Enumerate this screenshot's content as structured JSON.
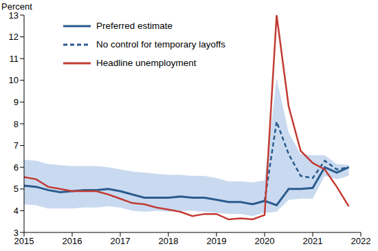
{
  "chart_data": {
    "type": "line",
    "y_label": "Percent",
    "x": [
      2015,
      2015.25,
      2015.5,
      2015.75,
      2016,
      2016.25,
      2016.5,
      2016.75,
      2017,
      2017.25,
      2017.5,
      2017.75,
      2018,
      2018.25,
      2018.5,
      2018.75,
      2019,
      2019.25,
      2019.5,
      2019.75,
      2020,
      2020.25,
      2020.5,
      2020.75,
      2021,
      2021.25,
      2021.5,
      2021.75
    ],
    "series": [
      {
        "name": "Preferred estimate",
        "color": "#2a5b8d",
        "line_style": "solid",
        "values": [
          5.15,
          5.1,
          4.95,
          4.85,
          4.9,
          4.95,
          4.95,
          5.0,
          4.9,
          4.75,
          4.6,
          4.6,
          4.6,
          4.65,
          4.6,
          4.6,
          4.5,
          4.4,
          4.4,
          4.3,
          4.45,
          4.25,
          5.0,
          5.0,
          5.05,
          6.0,
          5.75,
          6.0
        ]
      },
      {
        "name": "No control for temporary layoffs",
        "color": "#2a5b8d",
        "line_style": "dashed",
        "values": [
          null,
          null,
          null,
          null,
          null,
          null,
          null,
          null,
          null,
          null,
          null,
          null,
          null,
          null,
          null,
          null,
          null,
          null,
          null,
          null,
          4.45,
          8.1,
          6.6,
          5.6,
          5.5,
          6.3,
          5.9,
          6.0
        ]
      },
      {
        "name": "Headline unemployment",
        "color": "#c23b33",
        "line_style": "solid",
        "values": [
          5.55,
          5.45,
          5.1,
          5.0,
          4.9,
          4.9,
          4.9,
          4.75,
          4.55,
          4.35,
          4.3,
          4.15,
          4.05,
          3.95,
          3.75,
          3.85,
          3.85,
          3.6,
          3.65,
          3.6,
          3.8,
          13.0,
          8.8,
          6.75,
          6.2,
          5.9,
          5.1,
          4.2
        ]
      }
    ],
    "band": {
      "color": "#c9daf0",
      "lower": [
        4.3,
        4.25,
        4.1,
        4.1,
        4.1,
        4.15,
        4.15,
        4.2,
        4.15,
        4.0,
        3.95,
        4.0,
        3.95,
        4.0,
        4.0,
        3.95,
        3.9,
        3.85,
        3.85,
        3.75,
        3.9,
        3.95,
        4.5,
        4.55,
        4.55,
        5.6,
        5.45,
        5.6
      ],
      "upper": [
        6.35,
        6.3,
        6.15,
        6.1,
        6.05,
        6.05,
        6.05,
        6.0,
        5.9,
        5.8,
        5.75,
        5.7,
        5.65,
        5.65,
        5.6,
        5.6,
        5.5,
        5.35,
        5.35,
        5.3,
        5.4,
        10.1,
        7.6,
        6.6,
        6.55,
        6.55,
        6.15,
        6.1
      ]
    },
    "xlim": [
      2015,
      2022
    ],
    "xticks": [
      2015,
      2016,
      2017,
      2018,
      2019,
      2020,
      2021,
      2022
    ],
    "ylim": [
      3,
      13
    ],
    "yticks": [
      3,
      4,
      5,
      6,
      7,
      8,
      9,
      10,
      11,
      12,
      13
    ],
    "legend": "upper left",
    "grid": false
  }
}
